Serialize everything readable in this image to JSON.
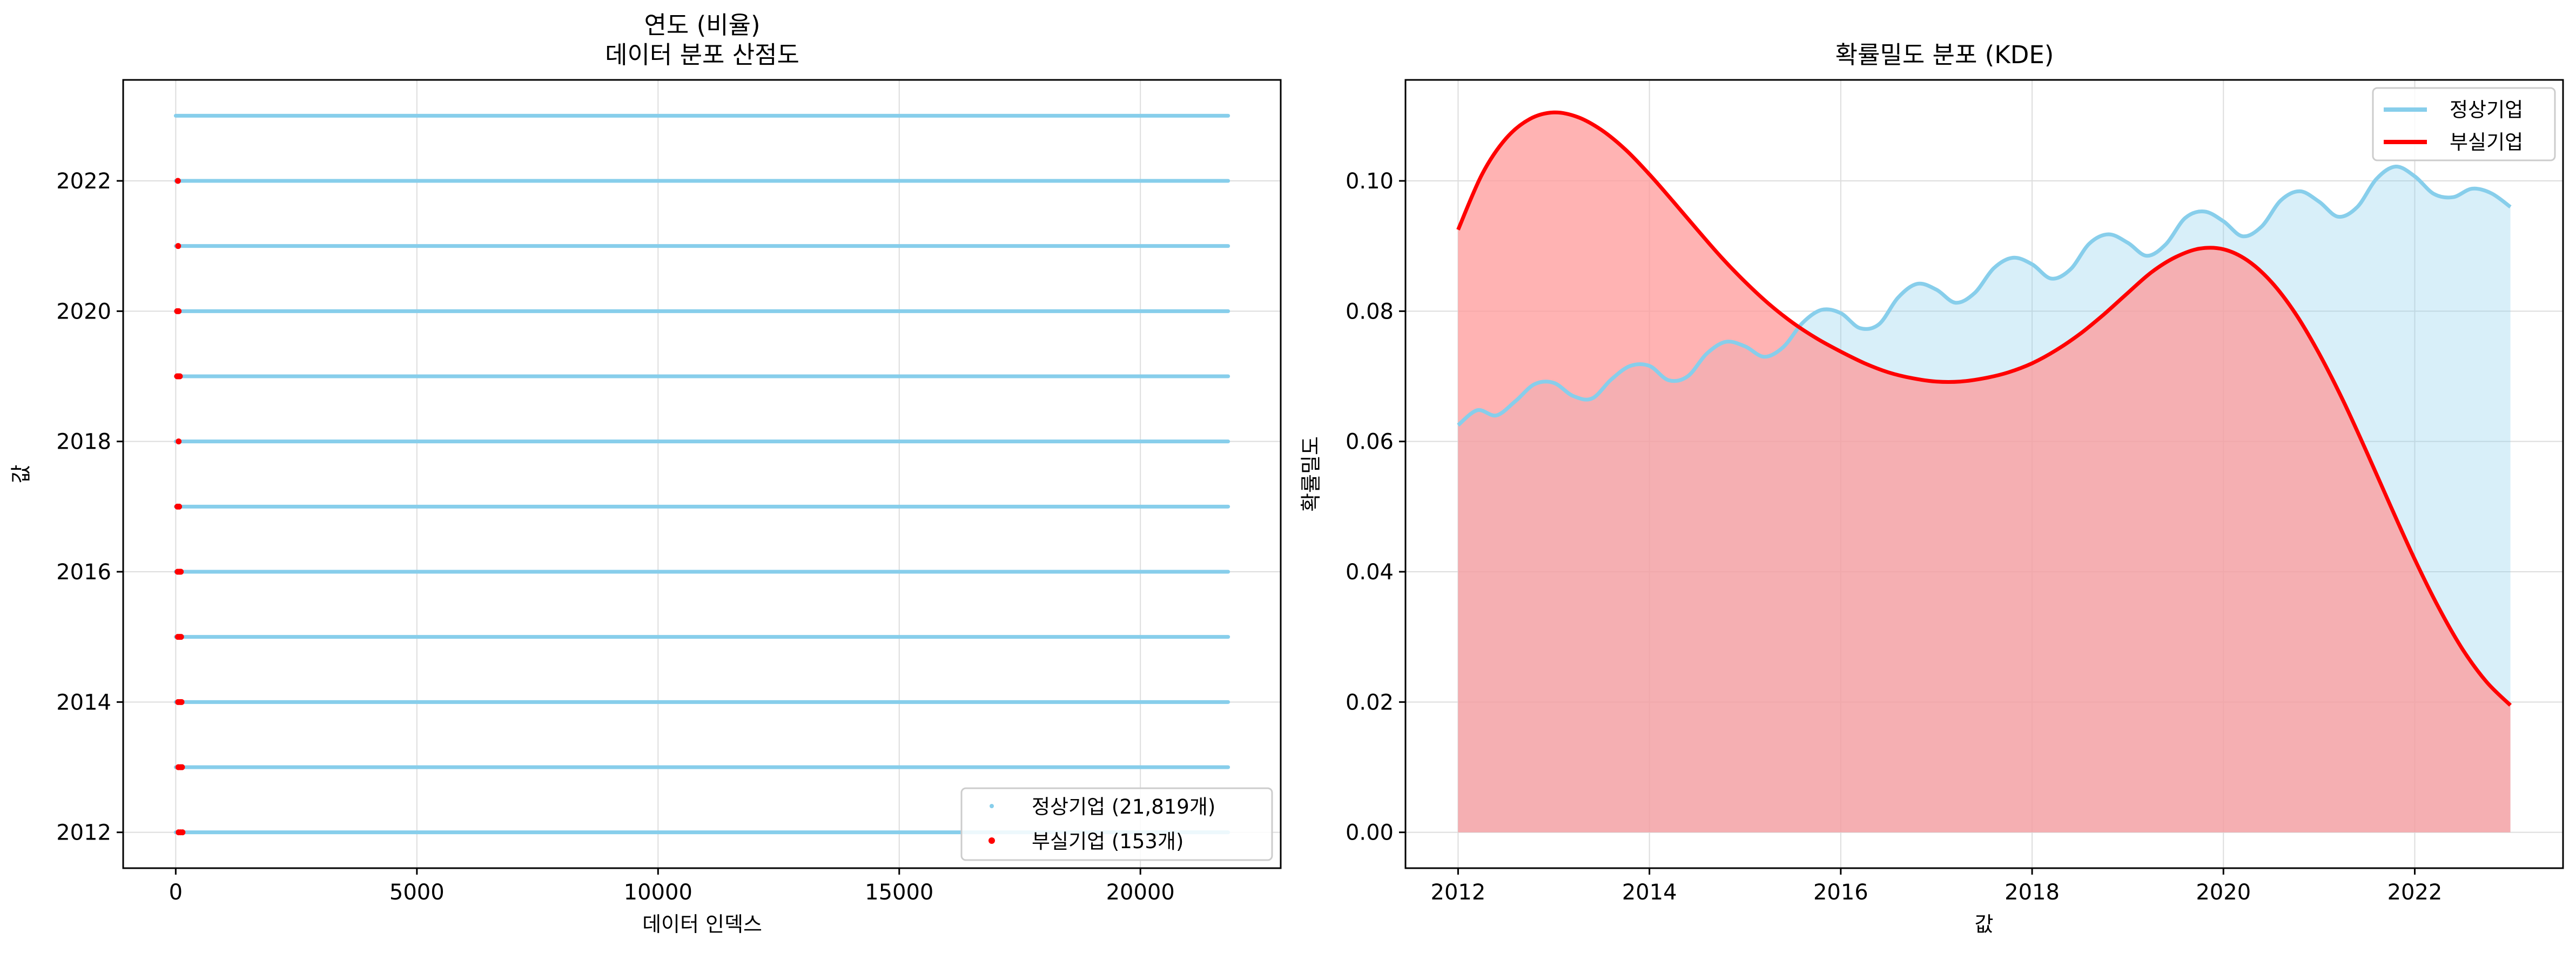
{
  "colors": {
    "normal": "#87ceeb",
    "failed": "#ff0000",
    "normal_fill": "#87ceeb",
    "failed_fill": "#ff9999",
    "grid": "#dddddd"
  },
  "chart_data": [
    {
      "type": "scatter",
      "title_line1": "연도 (비율)",
      "title_line2": "데이터 분포 산점도",
      "xlabel": "데이터 인덱스",
      "ylabel": "값",
      "xlim": [
        -1090,
        22909
      ],
      "ylim": [
        2011.45,
        2023.55
      ],
      "xticks": [
        0,
        5000,
        10000,
        15000,
        20000
      ],
      "yticks": [
        2012,
        2014,
        2016,
        2018,
        2020,
        2022
      ],
      "grid": true,
      "legend_position": "lower-right",
      "series": [
        {
          "name": "정상기업 (21,819개)",
          "kind": "point-bands",
          "x_range": [
            0,
            21819
          ],
          "y_values": [
            2012,
            2013,
            2014,
            2015,
            2016,
            2017,
            2018,
            2019,
            2020,
            2021,
            2022,
            2023
          ]
        },
        {
          "name": "부실기업 (153개)",
          "kind": "points",
          "points": [
            [
              60,
              2012
            ],
            [
              100,
              2012
            ],
            [
              140,
              2012
            ],
            [
              55,
              2013
            ],
            [
              95,
              2013
            ],
            [
              130,
              2013
            ],
            [
              50,
              2014
            ],
            [
              90,
              2014
            ],
            [
              120,
              2014
            ],
            [
              45,
              2015
            ],
            [
              80,
              2015
            ],
            [
              110,
              2015
            ],
            [
              40,
              2016
            ],
            [
              75,
              2016
            ],
            [
              105,
              2016
            ],
            [
              35,
              2017
            ],
            [
              70,
              2017
            ],
            [
              60,
              2018
            ],
            [
              30,
              2019
            ],
            [
              55,
              2019
            ],
            [
              85,
              2019
            ],
            [
              30,
              2020
            ],
            [
              60,
              2020
            ],
            [
              50,
              2021
            ],
            [
              45,
              2022
            ]
          ]
        }
      ]
    },
    {
      "type": "area",
      "title": "확률밀도 분포 (KDE)",
      "xlabel": "값",
      "ylabel": "확률밀도",
      "xlim": [
        2011.45,
        2023.55
      ],
      "ylim": [
        -0.0055,
        0.1155
      ],
      "xticks": [
        2012,
        2014,
        2016,
        2018,
        2020,
        2022
      ],
      "yticks": [
        0.0,
        0.02,
        0.04,
        0.06,
        0.08,
        0.1
      ],
      "ytick_labels": [
        "0.00",
        "0.02",
        "0.04",
        "0.06",
        "0.08",
        "0.10"
      ],
      "grid": true,
      "legend_position": "upper-right",
      "series": [
        {
          "name": "정상기업",
          "x": [
            2012.0,
            2012.2,
            2012.4,
            2012.6,
            2012.8,
            2013.0,
            2013.2,
            2013.4,
            2013.6,
            2013.8,
            2014.0,
            2014.2,
            2014.4,
            2014.6,
            2014.8,
            2015.0,
            2015.2,
            2015.4,
            2015.6,
            2015.8,
            2016.0,
            2016.2,
            2016.4,
            2016.6,
            2016.8,
            2017.0,
            2017.2,
            2017.4,
            2017.6,
            2017.8,
            2018.0,
            2018.2,
            2018.4,
            2018.6,
            2018.8,
            2019.0,
            2019.2,
            2019.4,
            2019.6,
            2019.8,
            2020.0,
            2020.2,
            2020.4,
            2020.6,
            2020.8,
            2021.0,
            2021.2,
            2021.4,
            2021.6,
            2021.8,
            2022.0,
            2022.2,
            2022.4,
            2022.6,
            2022.8,
            2023.0
          ],
          "values": [
            0.0625,
            0.0648,
            0.064,
            0.0662,
            0.0688,
            0.069,
            0.067,
            0.0666,
            0.0695,
            0.0716,
            0.0716,
            0.0694,
            0.07,
            0.0735,
            0.0753,
            0.0746,
            0.073,
            0.0745,
            0.0782,
            0.0802,
            0.0797,
            0.0774,
            0.078,
            0.0821,
            0.0842,
            0.0833,
            0.0813,
            0.0828,
            0.0866,
            0.0882,
            0.0872,
            0.085,
            0.0864,
            0.0904,
            0.0918,
            0.0905,
            0.0885,
            0.0903,
            0.0943,
            0.0953,
            0.0938,
            0.0915,
            0.093,
            0.097,
            0.0984,
            0.0968,
            0.0945,
            0.096,
            0.1003,
            0.1022,
            0.1007,
            0.098,
            0.0975,
            0.0988,
            0.0981,
            0.096
          ]
        },
        {
          "name": "부실기업",
          "x": [
            2012.0,
            2012.25,
            2012.5,
            2012.75,
            2013.0,
            2013.25,
            2013.5,
            2013.75,
            2014.0,
            2014.25,
            2014.5,
            2014.75,
            2015.0,
            2015.25,
            2015.5,
            2015.75,
            2016.0,
            2016.25,
            2016.5,
            2016.75,
            2017.0,
            2017.25,
            2017.5,
            2017.75,
            2018.0,
            2018.25,
            2018.5,
            2018.75,
            2019.0,
            2019.25,
            2019.5,
            2019.75,
            2020.0,
            2020.25,
            2020.5,
            2020.75,
            2021.0,
            2021.25,
            2021.5,
            2021.75,
            2022.0,
            2022.25,
            2022.5,
            2022.75,
            2023.0
          ],
          "values": [
            0.0925,
            0.101,
            0.1065,
            0.1095,
            0.1105,
            0.1098,
            0.1078,
            0.1048,
            0.101,
            0.0968,
            0.0925,
            0.0883,
            0.0845,
            0.0811,
            0.0782,
            0.0758,
            0.0738,
            0.072,
            0.0706,
            0.0697,
            0.0692,
            0.0692,
            0.0697,
            0.0706,
            0.072,
            0.074,
            0.0765,
            0.0795,
            0.0828,
            0.086,
            0.0883,
            0.0896,
            0.0895,
            0.0878,
            0.0845,
            0.0797,
            0.0735,
            0.0663,
            0.0583,
            0.05,
            0.0419,
            0.0345,
            0.0281,
            0.0231,
            0.0195
          ]
        }
      ]
    }
  ]
}
